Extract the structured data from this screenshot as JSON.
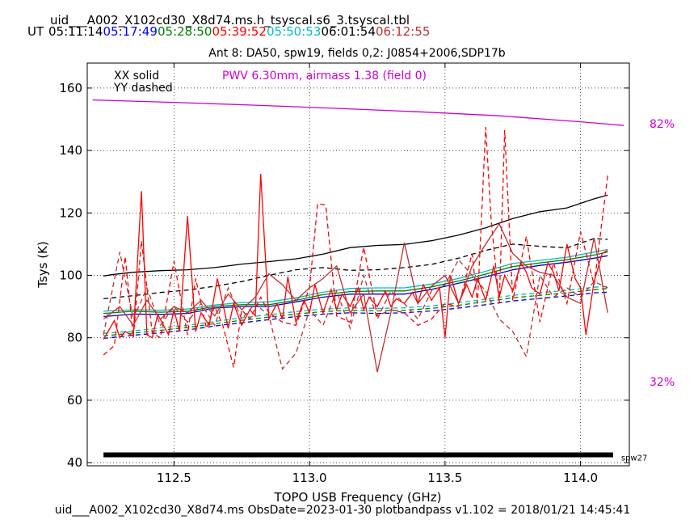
{
  "header": {
    "filename": "uid___A002_X102cd30_X8d74.ms.h_tsyscal.s6_3.tsyscal.tbl",
    "ut_label": "UT",
    "times": [
      {
        "text": "05:11:14",
        "color": "#000000"
      },
      {
        "text": "05:17:49",
        "color": "#0000ff"
      },
      {
        "text": "05:28:50",
        "color": "#008000"
      },
      {
        "text": "05:39:52",
        "color": "#ff0000"
      },
      {
        "text": "05:50:53",
        "color": "#00bfbf"
      },
      {
        "text": "06:01:54",
        "color": "#000000"
      },
      {
        "text": "06:12:55",
        "color": "#c03030"
      }
    ]
  },
  "footer": "uid___A002_X102cd30_X8d74.ms  ObsDate=2023-01-30   plotbandpass v1.102 = 2018/01/21 14:45:41",
  "chart_data": {
    "type": "line",
    "title": "Ant 8: DA50,  spw19,  fields 0,2: J0854+2006,SDP17b",
    "xlabel": "TOPO USB Frequency (GHz)",
    "ylabel": "Tsys (K)",
    "xlim": [
      112.18,
      114.18
    ],
    "ylim": [
      39,
      168
    ],
    "xticks": [
      112.5,
      113.0,
      113.5,
      114.0
    ],
    "xtick_labels": [
      "112.5",
      "113.0",
      "113.5",
      "114.0"
    ],
    "yticks": [
      40,
      60,
      80,
      100,
      120,
      140,
      160
    ],
    "ytick_labels": [
      "40",
      "60",
      "80",
      "100",
      "120",
      "140",
      "160"
    ],
    "grid": true,
    "legend_text": [
      "XX solid",
      "YY dashed"
    ],
    "pwv_text": "PWV 6.30mm, airmass 1.38 (field 0)",
    "right_labels": [
      {
        "text": "82%",
        "y": 154
      },
      {
        "text": "32%",
        "y": 71
      }
    ],
    "spw_bar": {
      "x_start": 112.24,
      "x_end": 114.12,
      "y": 42.5,
      "label": "spw27"
    },
    "series": [
      {
        "color": "#cc00cc",
        "dash": false,
        "width": 1.3,
        "x": [
          112.2,
          112.5,
          112.8,
          113.1,
          113.4,
          113.7,
          114.0,
          114.16
        ],
        "y": [
          156.2,
          155.4,
          154.5,
          153.5,
          152.4,
          151.1,
          149.2,
          148.0
        ]
      },
      {
        "color": "#000000",
        "dash": false,
        "width": 1.3,
        "x": [
          112.24,
          112.27,
          112.35,
          112.45,
          112.55,
          112.65,
          112.75,
          112.85,
          112.95,
          113.05,
          113.15,
          113.25,
          113.35,
          113.45,
          113.55,
          113.65,
          113.75,
          113.85,
          113.95,
          114.05,
          114.1
        ],
        "y": [
          99.8,
          100.2,
          101.0,
          101.5,
          101.8,
          102.5,
          103.6,
          104.4,
          105.3,
          106.8,
          108.9,
          109.6,
          109.9,
          111.1,
          112.9,
          115.2,
          118.2,
          120.4,
          121.6,
          124.5,
          125.7
        ]
      },
      {
        "color": "#000000",
        "dash": true,
        "width": 1.3,
        "x": [
          112.24,
          112.35,
          112.45,
          112.55,
          112.65,
          112.75,
          112.85,
          112.95,
          113.05,
          113.15,
          113.25,
          113.35,
          113.45,
          113.55,
          113.65,
          113.75,
          113.85,
          113.95,
          114.05,
          114.1
        ],
        "y": [
          92.5,
          93.5,
          94.5,
          95.3,
          96.5,
          98.0,
          100.0,
          101.8,
          102.5,
          101.6,
          101.8,
          102.5,
          103.5,
          105.5,
          108.0,
          110.0,
          109.3,
          108.8,
          111.8,
          111.5
        ]
      },
      {
        "color": "#0000cc",
        "dash": false,
        "width": 1.3,
        "x": [
          112.24,
          112.35,
          112.45,
          112.55,
          112.65,
          112.75,
          112.85,
          112.95,
          113.05,
          113.15,
          113.25,
          113.35,
          113.45,
          113.55,
          113.65,
          113.75,
          113.85,
          113.95,
          114.05,
          114.1
        ],
        "y": [
          86.8,
          87.6,
          87.5,
          87.8,
          89.5,
          90.0,
          90.0,
          91.5,
          93.0,
          94.0,
          94.0,
          94.0,
          95.5,
          97.5,
          99.5,
          101.8,
          103.2,
          104.2,
          105.5,
          106.3
        ]
      },
      {
        "color": "#008000",
        "dash": false,
        "width": 1.3,
        "x": [
          112.24,
          112.35,
          112.45,
          112.55,
          112.65,
          112.75,
          112.85,
          112.95,
          113.05,
          113.15,
          113.25,
          113.35,
          113.45,
          113.55,
          113.65,
          113.75,
          113.85,
          113.95,
          114.05,
          114.1
        ],
        "y": [
          87.8,
          88.5,
          88.2,
          88.5,
          90.0,
          90.6,
          90.6,
          92.0,
          93.8,
          94.8,
          95.0,
          95.0,
          96.3,
          98.2,
          100.4,
          102.8,
          104.0,
          105.0,
          106.5,
          107.5
        ]
      },
      {
        "color": "#00bfbf",
        "dash": false,
        "width": 1.3,
        "x": [
          112.24,
          112.35,
          112.45,
          112.55,
          112.65,
          112.75,
          112.85,
          112.95,
          113.05,
          113.15,
          113.25,
          113.35,
          113.45,
          113.55,
          113.65,
          113.75,
          113.85,
          113.95,
          114.05,
          114.1
        ],
        "y": [
          88.5,
          89.0,
          88.8,
          89.2,
          90.5,
          91.3,
          91.5,
          92.8,
          94.6,
          95.8,
          96.0,
          96.0,
          97.2,
          99.0,
          101.3,
          103.8,
          104.8,
          105.8,
          107.5,
          108.3
        ]
      },
      {
        "color": "#0000cc",
        "dash": true,
        "width": 1.3,
        "x": [
          112.24,
          112.35,
          112.45,
          112.55,
          112.65,
          112.75,
          112.85,
          112.95,
          113.05,
          113.15,
          113.25,
          113.35,
          113.45,
          113.55,
          113.65,
          113.75,
          113.85,
          113.95,
          114.05,
          114.1
        ],
        "y": [
          79.8,
          80.8,
          81.6,
          82.5,
          83.8,
          84.8,
          85.8,
          86.8,
          87.6,
          88.0,
          87.8,
          88.0,
          88.6,
          89.5,
          90.6,
          91.8,
          92.6,
          93.4,
          94.4,
          94.6
        ]
      },
      {
        "color": "#008000",
        "dash": true,
        "width": 1.3,
        "x": [
          112.24,
          112.35,
          112.45,
          112.55,
          112.65,
          112.75,
          112.85,
          112.95,
          113.05,
          113.15,
          113.25,
          113.35,
          113.45,
          113.55,
          113.65,
          113.75,
          113.85,
          113.95,
          114.05,
          114.1
        ],
        "y": [
          80.6,
          81.5,
          82.4,
          83.3,
          84.5,
          85.6,
          86.6,
          87.6,
          88.4,
          88.8,
          88.6,
          88.8,
          89.4,
          90.4,
          91.6,
          92.8,
          93.6,
          94.4,
          95.4,
          95.8
        ]
      },
      {
        "color": "#00bfbf",
        "dash": true,
        "width": 1.3,
        "x": [
          112.24,
          112.35,
          112.45,
          112.55,
          112.65,
          112.75,
          112.85,
          112.95,
          113.05,
          113.15,
          113.25,
          113.35,
          113.45,
          113.55,
          113.65,
          113.75,
          113.85,
          113.95,
          114.05,
          114.1
        ],
        "y": [
          81.4,
          82.2,
          83.2,
          84.0,
          85.2,
          86.4,
          87.4,
          88.4,
          89.2,
          89.6,
          89.4,
          89.6,
          90.2,
          91.2,
          92.4,
          93.6,
          94.4,
          95.2,
          96.2,
          96.5
        ]
      },
      {
        "color": "#ff0000",
        "dash": false,
        "width": 1.3,
        "x": [
          112.24,
          112.28,
          112.3,
          112.32,
          112.35,
          112.38,
          112.4,
          112.42,
          112.44,
          112.48,
          112.5,
          112.52,
          112.55,
          112.58,
          112.6,
          112.63,
          112.66,
          112.7,
          112.72,
          112.75,
          112.78,
          112.8,
          112.82,
          112.85,
          112.88,
          112.9,
          112.92,
          112.95,
          112.98,
          113.0,
          113.02,
          113.05,
          113.08,
          113.1,
          113.12,
          113.15,
          113.18,
          113.2,
          113.22,
          113.25,
          113.28,
          113.3,
          113.32,
          113.35,
          113.38,
          113.4,
          113.42,
          113.45,
          113.48,
          113.5,
          113.52,
          113.55,
          113.58,
          113.6,
          113.62,
          113.65,
          113.68,
          113.7,
          113.72,
          113.75,
          113.78,
          113.8,
          113.82,
          113.85,
          113.88,
          113.9,
          113.92,
          113.95,
          113.98,
          114.0,
          114.02,
          114.05,
          114.08,
          114.1
        ],
        "y": [
          79.5,
          85.5,
          80.0,
          82.0,
          80.5,
          127.0,
          81.0,
          80.0,
          87.5,
          81.0,
          89.0,
          82.0,
          119.0,
          82.0,
          88.0,
          84.0,
          99.0,
          83.0,
          91.0,
          84.0,
          89.0,
          87.0,
          132.5,
          86.0,
          91.0,
          86.0,
          99.5,
          85.0,
          92.0,
          88.0,
          97.0,
          88.0,
          95.5,
          89.0,
          94.0,
          90.0,
          96.0,
          89.0,
          93.0,
          90.0,
          95.0,
          90.0,
          92.5,
          91.0,
          94.5,
          91.0,
          97.0,
          92.0,
          96.0,
          80.0,
          100.0,
          91.0,
          97.0,
          93.0,
          99.0,
          92.0,
          103.0,
          93.0,
          100.0,
          95.0,
          104.0,
          101.0,
          96.0,
          94.0,
          104.0,
          101.0,
          95.0,
          110.0,
          99.0,
          96.0,
          81.0,
          98.0,
          107.0,
          108.0
        ]
      },
      {
        "color": "#ff0000",
        "dash": true,
        "width": 1.3,
        "x": [
          112.24,
          112.28,
          112.32,
          112.35,
          112.38,
          112.42,
          112.45,
          112.5,
          112.55,
          112.58,
          112.62,
          112.65,
          112.68,
          112.72,
          112.75,
          112.78,
          112.82,
          112.85,
          112.9,
          112.95,
          113.0,
          113.03,
          113.06,
          113.1,
          113.15,
          113.2,
          113.25,
          113.3,
          113.35,
          113.4,
          113.45,
          113.5,
          113.55,
          113.6,
          113.62,
          113.65,
          113.67,
          113.7,
          113.72,
          113.75,
          113.8,
          113.85,
          113.9,
          113.95,
          114.0,
          114.05,
          114.1
        ],
        "y": [
          74.5,
          77.5,
          106.0,
          80.0,
          111.0,
          81.5,
          80.0,
          104.5,
          81.0,
          99.0,
          83.0,
          90.0,
          84.0,
          70.5,
          89.0,
          86.0,
          93.0,
          88.0,
          85.0,
          84.0,
          96.0,
          123.0,
          122.5,
          87.0,
          85.0,
          109.0,
          87.0,
          89.0,
          88.0,
          84.0,
          86.0,
          91.0,
          90.0,
          107.0,
          91.0,
          147.5,
          118.0,
          91.0,
          146.5,
          92.0,
          112.5,
          85.0,
          104.0,
          91.0,
          114.0,
          97.0,
          132.0
        ]
      },
      {
        "color": "#c03030",
        "dash": false,
        "width": 1.3,
        "x": [
          112.24,
          112.3,
          112.35,
          112.4,
          112.45,
          112.5,
          112.55,
          112.6,
          112.65,
          112.7,
          112.75,
          112.8,
          112.85,
          112.9,
          112.95,
          113.0,
          113.05,
          113.1,
          113.15,
          113.2,
          113.25,
          113.3,
          113.35,
          113.4,
          113.45,
          113.5,
          113.55,
          113.6,
          113.65,
          113.7,
          113.75,
          113.8,
          113.85,
          113.9,
          113.95,
          114.0,
          114.05,
          114.1
        ],
        "y": [
          86.0,
          90.0,
          84.0,
          92.0,
          86.0,
          90.0,
          88.0,
          92.0,
          87.0,
          94.0,
          89.0,
          93.0,
          100.5,
          97.0,
          92.0,
          96.0,
          99.0,
          103.0,
          88.0,
          94.0,
          69.0,
          88.0,
          110.5,
          91.0,
          96.5,
          100.0,
          91.0,
          103.0,
          110.0,
          116.5,
          107.0,
          103.0,
          101.0,
          100.0,
          93.0,
          91.0,
          112.0,
          88.0
        ]
      },
      {
        "color": "#c03030",
        "dash": true,
        "width": 1.3,
        "x": [
          112.24,
          112.3,
          112.35,
          112.4,
          112.45,
          112.5,
          112.55,
          112.6,
          112.65,
          112.7,
          112.75,
          112.8,
          112.85,
          112.9,
          112.95,
          113.0,
          113.05,
          113.1,
          113.15,
          113.2,
          113.25,
          113.3,
          113.35,
          113.4,
          113.45,
          113.5,
          113.55,
          113.6,
          113.65,
          113.7,
          113.75,
          113.8,
          113.85,
          113.9,
          113.95,
          114.0,
          114.05,
          114.1
        ],
        "y": [
          81.0,
          107.5,
          86.0,
          96.0,
          84.0,
          90.0,
          85.0,
          91.0,
          84.0,
          96.0,
          86.0,
          91.0,
          87.0,
          70.0,
          75.0,
          89.0,
          84.0,
          95.0,
          83.0,
          100.0,
          86.0,
          95.0,
          91.0,
          86.0,
          95.0,
          97.0,
          105.0,
          100.0,
          95.0,
          86.0,
          82.0,
          74.0,
          100.0,
          93.0,
          96.0,
          93.0,
          98.0,
          96.0
        ]
      }
    ]
  }
}
